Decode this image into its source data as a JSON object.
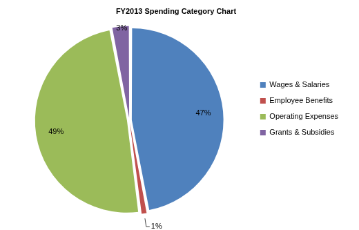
{
  "chart_data": {
    "type": "pie",
    "title": "FY2013 Spending Category Chart",
    "categories": [
      "Wages & Salaries",
      "Employee Benefits",
      "Operating Expenses",
      "Grants & Subsidies"
    ],
    "values": [
      47,
      1,
      49,
      3
    ],
    "value_labels": [
      "47%",
      "1%",
      "49%",
      "3%"
    ],
    "colors": [
      "#4f81bd",
      "#c0504d",
      "#9bbb59",
      "#8064a2"
    ],
    "data_labels": true,
    "legend": "right"
  }
}
